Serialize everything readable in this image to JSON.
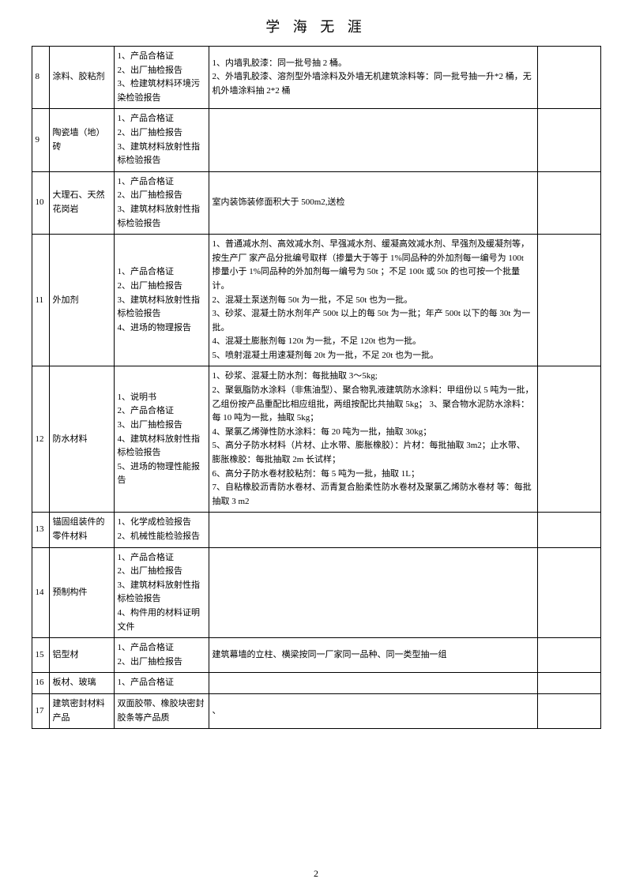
{
  "title": "学 海 无 涯",
  "page_number": "2",
  "rows": [
    {
      "idx": "8",
      "name": "涂料、胶粘剂",
      "docs": "1、产品合格证\n2、出厂抽检报告\n3、检建筑材料环境污染检验报告",
      "desc": "1、内墙乳胶漆：同一批号抽 2 桶。\n2、外墙乳胶漆、溶剂型外墙涂料及外墙无机建筑涂料等：同一批号抽一升*2 桶，无机外墙涂料抽 2*2 桶",
      "last": ""
    },
    {
      "idx": "9",
      "name": "陶瓷墙（地）砖",
      "docs": "1、产品合格证\n2、出厂抽检报告\n3、建筑材料放射性指标检验报告",
      "desc": "",
      "last": ""
    },
    {
      "idx": "10",
      "name": "大理石、天然花岗岩",
      "docs": "1、产品合格证\n2、出厂抽检报告\n3、建筑材料放射性指标检验报告",
      "desc": "室内装饰装修面积大于 500m2,送检",
      "last": ""
    },
    {
      "idx": "11",
      "name": "外加剂",
      "docs": "1、产品合格证\n2、出厂抽检报告\n3、建筑材料放射性指标检验报告\n4、进场的物理报告",
      "desc": "1、普通减水剂、高效减水剂、早强减水剂、缓凝高效减水剂、早强剂及缓凝剂等，按生产厂 家产品分批编号取样（掺量大于等于 1%同品种的外加剂每一编号为 100t 掺量小于 1%同品种的外加剂每一编号为 50t ；不足 100t 或 50t 的也可按一个批量计。\n2、混凝土泵送剂每 50t 为一批，不足 50t 也为一批。\n3、砂浆、混凝土防水剂年产 500t 以上的每 50t 为一批；年产 500t 以下的每 30t 为一批。\n4、混凝土膨胀剂每 120t 为一批，不足 120t 也为一批。\n5、喷射混凝土用速凝剂每 20t 为一批，不足 20t 也为一批。",
      "last": ""
    },
    {
      "idx": "12",
      "name": "防水材料",
      "docs": "1、说明书\n2、产品合格证\n3、出厂抽检报告\n4、建筑材料放射性指标检验报告\n5、进场的物理性能报告",
      "desc": "1、砂浆、混凝土防水剂：每批抽取 3～5kg;\n2、聚氨脂防水涂料（非焦油型）、聚合物乳液建筑防水涂料：甲组份以 5 吨为一批，乙组份按产品重配比相应组批，两组按配比共抽取 5kg；   3、聚合物水泥防水涂料：每 10 吨为一批，抽取 5kg；\n4、聚氯乙烯弹性防水涂料：每 20 吨为一批，抽取 30kg；\n5、高分子防水材料（片材、止水带、膨胀橡胶）：片材：每批抽取 3m2；止水带、膨胀橡胶：每批抽取 2m 长试样；\n6、高分子防水卷材胶粘剂：每 5 吨为一批，抽取 1L；\n7、自粘橡胶沥青防水卷材、沥青复合胎柔性防水卷材及聚氯乙烯防水卷材 等：每批抽取 3 m2",
      "last": ""
    },
    {
      "idx": "13",
      "name": "锚固组装件的零件材料",
      "docs": "1、化学成检验报告\n2、机械性能检验报告",
      "desc": "",
      "last": ""
    },
    {
      "idx": "14",
      "name": "预制构件",
      "docs": "1、产品合格证\n2、出厂抽检报告\n3、建筑材料放射性指标检验报告\n4、构件用的材料证明文件",
      "desc": "",
      "last": ""
    },
    {
      "idx": "15",
      "name": "铝型材",
      "docs": "1、产品合格证\n2、出厂抽检报告",
      "desc": "建筑幕墙的立柱、横梁按同一厂家同一品种、同一类型抽一组",
      "last": ""
    },
    {
      "idx": "16",
      "name": "板材、玻璃",
      "docs": "1、产品合格证",
      "desc": "",
      "last": ""
    },
    {
      "idx": "17",
      "name": "建筑密封材料产品",
      "docs": "双面胶带、橡胶块密封胶条等产品质",
      "desc": "、",
      "last": ""
    }
  ]
}
